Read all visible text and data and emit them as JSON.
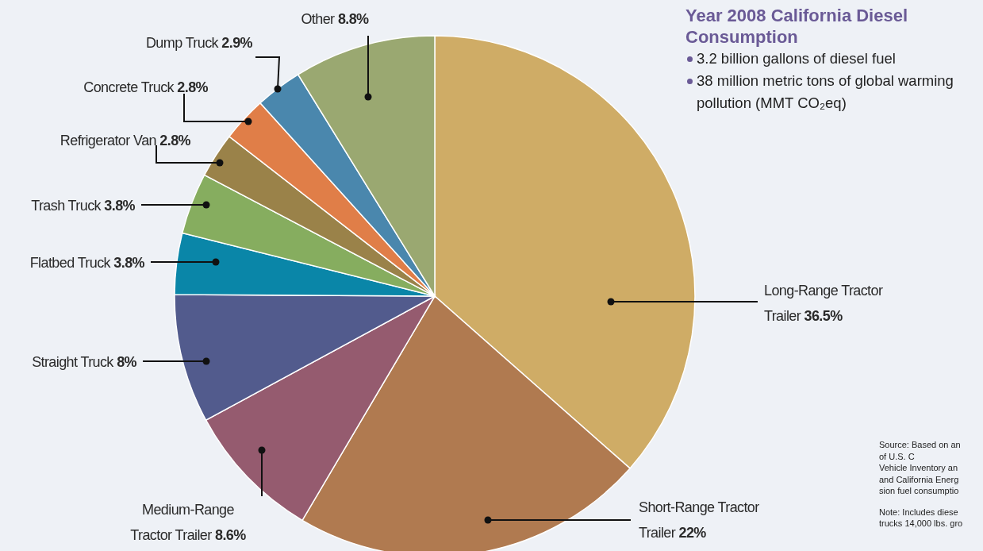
{
  "chart_data": {
    "type": "pie",
    "title": "Year 2008 California Diesel Consumption",
    "categories": [
      "Long-Range Tractor Trailer",
      "Short-Range Tractor Trailer",
      "Medium-Range Tractor Trailer",
      "Straight Truck",
      "Flatbed Truck",
      "Trash Truck",
      "Refrigerator Van",
      "Concrete Truck",
      "Dump Truck",
      "Other"
    ],
    "values": [
      36.5,
      22,
      8.6,
      8,
      3.8,
      3.8,
      2.8,
      2.8,
      2.9,
      8.8
    ],
    "value_labels": [
      "36.5%",
      "22%",
      "8.6%",
      "8%",
      "3.8%",
      "3.8%",
      "2.8%",
      "2.8%",
      "2.9%",
      "8.8%"
    ],
    "colors": [
      "#cfac66",
      "#b07a50",
      "#955b6f",
      "#525b8d",
      "#0a86a8",
      "#86ad5f",
      "#9a8249",
      "#e07e48",
      "#4a87ad",
      "#9aa871"
    ],
    "annotations": [
      "3.2 billion gallons of diesel fuel",
      "38 million metric tons of global warming pollution (MMT CO₂eq)",
      "Source: Based on an",
      "of U.S. C",
      "Vehicle Inventory an",
      "and California Energ",
      "sion fuel consumptio",
      "Note: Includes diese",
      "trucks 14,000 lbs. gro"
    ]
  }
}
